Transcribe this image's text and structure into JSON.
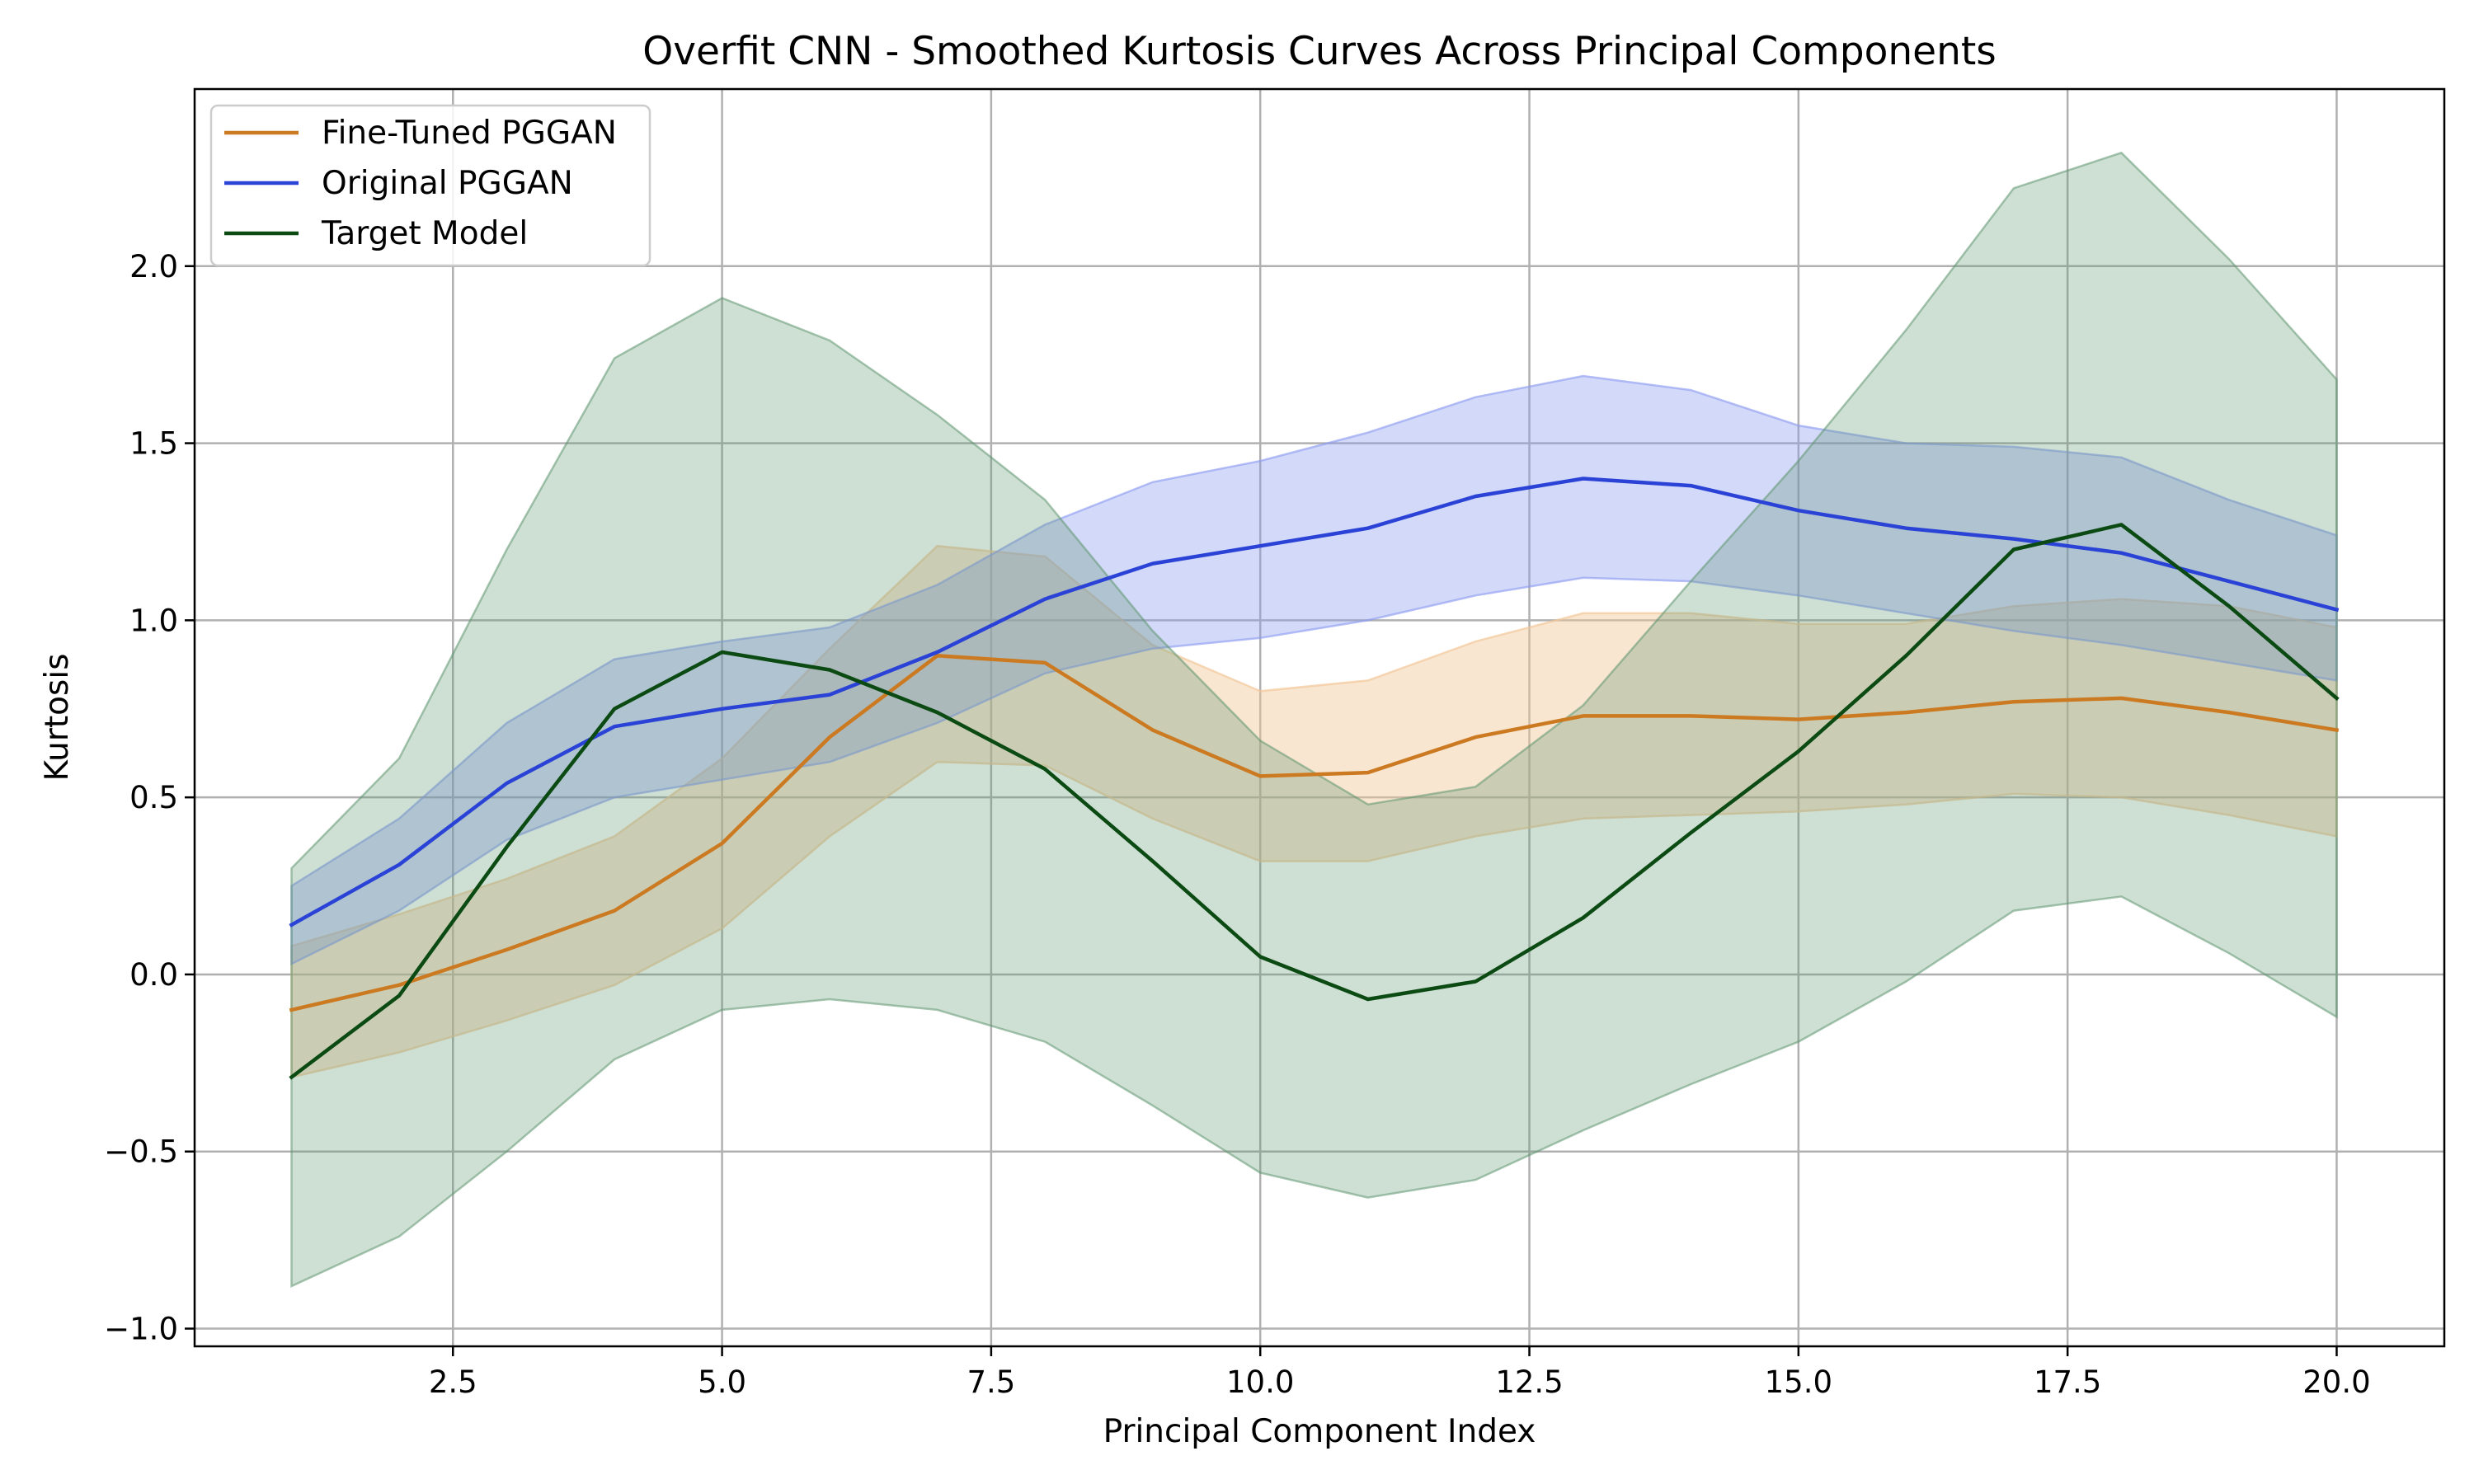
{
  "chart_data": {
    "type": "line",
    "title": "Overfit CNN - Smoothed Kurtosis Curves Across Principal Components",
    "xlabel": "Principal Component Index",
    "ylabel": "Kurtosis",
    "xlim": [
      0.1,
      21.0
    ],
    "ylim": [
      -1.05,
      2.5
    ],
    "xticks": [
      2.5,
      5.0,
      7.5,
      10.0,
      12.5,
      15.0,
      17.5,
      20.0
    ],
    "xtick_labels": [
      "2.5",
      "5.0",
      "7.5",
      "10.0",
      "12.5",
      "15.0",
      "17.5",
      "20.0"
    ],
    "yticks": [
      -1.0,
      -0.5,
      0.0,
      0.5,
      1.0,
      1.5,
      2.0
    ],
    "ytick_labels": [
      "−1.0",
      "−0.5",
      "0.0",
      "0.5",
      "1.0",
      "1.5",
      "2.0"
    ],
    "grid": true,
    "legend_position": "top-left",
    "x": [
      1,
      2,
      3,
      4,
      5,
      6,
      7,
      8,
      9,
      10,
      11,
      12,
      13,
      14,
      15,
      16,
      17,
      18,
      19,
      20
    ],
    "series": [
      {
        "name": "Fine-Tuned PGGAN",
        "color": "#cc7a22",
        "band_color": "#f2c89a",
        "band_opacity": 0.45,
        "values": [
          -0.1,
          -0.03,
          0.07,
          0.18,
          0.37,
          0.67,
          0.9,
          0.88,
          0.69,
          0.56,
          0.57,
          0.67,
          0.73,
          0.73,
          0.72,
          0.74,
          0.77,
          0.78,
          0.74,
          0.69
        ],
        "upper": [
          0.08,
          0.17,
          0.27,
          0.39,
          0.61,
          0.92,
          1.21,
          1.18,
          0.93,
          0.8,
          0.83,
          0.94,
          1.02,
          1.02,
          0.99,
          0.99,
          1.04,
          1.06,
          1.04,
          0.98
        ],
        "lower": [
          -0.29,
          -0.22,
          -0.13,
          -0.03,
          0.13,
          0.39,
          0.6,
          0.59,
          0.44,
          0.32,
          0.32,
          0.39,
          0.44,
          0.45,
          0.46,
          0.48,
          0.51,
          0.5,
          0.45,
          0.39
        ]
      },
      {
        "name": "Original PGGAN",
        "color": "#2a42d6",
        "band_color": "#8c9cf0",
        "band_opacity": 0.38,
        "values": [
          0.14,
          0.31,
          0.54,
          0.7,
          0.75,
          0.79,
          0.91,
          1.06,
          1.16,
          1.21,
          1.26,
          1.35,
          1.4,
          1.38,
          1.31,
          1.26,
          1.23,
          1.19,
          1.11,
          1.03
        ],
        "upper": [
          0.25,
          0.44,
          0.71,
          0.89,
          0.94,
          0.98,
          1.1,
          1.27,
          1.39,
          1.45,
          1.53,
          1.63,
          1.69,
          1.65,
          1.55,
          1.5,
          1.49,
          1.46,
          1.34,
          1.24
        ],
        "lower": [
          0.03,
          0.18,
          0.38,
          0.5,
          0.55,
          0.6,
          0.71,
          0.85,
          0.92,
          0.95,
          1.0,
          1.07,
          1.12,
          1.11,
          1.07,
          1.02,
          0.97,
          0.93,
          0.88,
          0.83
        ]
      },
      {
        "name": "Target Model",
        "color": "#0b4a12",
        "band_color": "#5e9670",
        "band_opacity": 0.3,
        "values": [
          -0.29,
          -0.06,
          0.36,
          0.75,
          0.91,
          0.86,
          0.74,
          0.58,
          0.32,
          0.05,
          -0.07,
          -0.02,
          0.16,
          0.4,
          0.63,
          0.9,
          1.2,
          1.27,
          1.04,
          0.78
        ],
        "upper": [
          0.3,
          0.61,
          1.2,
          1.74,
          1.91,
          1.79,
          1.58,
          1.34,
          0.97,
          0.66,
          0.48,
          0.53,
          0.76,
          1.11,
          1.45,
          1.82,
          2.22,
          2.32,
          2.02,
          1.68
        ],
        "lower": [
          -0.88,
          -0.74,
          -0.5,
          -0.24,
          -0.1,
          -0.07,
          -0.1,
          -0.19,
          -0.37,
          -0.56,
          -0.63,
          -0.58,
          -0.44,
          -0.31,
          -0.19,
          -0.02,
          0.18,
          0.22,
          0.06,
          -0.12
        ]
      }
    ]
  }
}
